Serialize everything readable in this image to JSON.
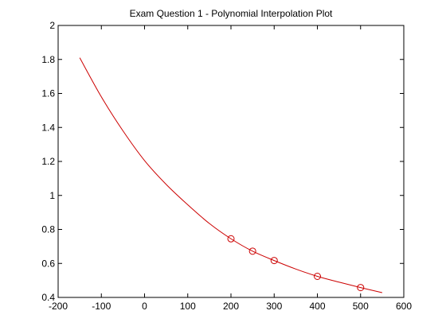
{
  "chart_data": {
    "type": "line",
    "title": "Exam Question 1 - Polynomial Interpolation Plot",
    "xlabel": "",
    "ylabel": "",
    "xlim": [
      -200,
      600
    ],
    "ylim": [
      0.4,
      2
    ],
    "xticks": [
      -200,
      -100,
      0,
      100,
      200,
      300,
      400,
      500,
      600
    ],
    "xtick_labels": [
      "-200",
      "-100",
      "0",
      "100",
      "200",
      "300",
      "400",
      "500",
      "600"
    ],
    "yticks": [
      0.4,
      0.6,
      0.8,
      1,
      1.2,
      1.4,
      1.6,
      1.8,
      2
    ],
    "ytick_labels": [
      "0.4",
      "0.6",
      "0.8",
      "1",
      "1.2",
      "1.4",
      "1.6",
      "1.8",
      "2"
    ],
    "grid": false,
    "color": "#cc0000",
    "series": [
      {
        "style": "line",
        "x": [
          -150,
          -100,
          -50,
          0,
          50,
          100,
          150,
          200,
          250,
          300,
          350,
          400,
          450,
          500,
          550
        ],
        "y": [
          1.81,
          1.58,
          1.38,
          1.205,
          1.065,
          0.945,
          0.835,
          0.745,
          0.672,
          0.617,
          0.567,
          0.524,
          0.49,
          0.458,
          0.428
        ]
      },
      {
        "style": "marker",
        "marker": "circle",
        "x": [
          200,
          250,
          300,
          400,
          500
        ],
        "y": [
          0.745,
          0.672,
          0.617,
          0.524,
          0.458
        ]
      }
    ]
  }
}
